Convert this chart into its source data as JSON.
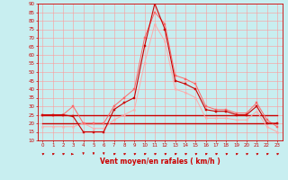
{
  "title": "",
  "xlabel": "Vent moyen/en rafales ( km/h )",
  "ylabel": "",
  "bg_color": "#c8eef0",
  "grid_color": "#ff9999",
  "xlim": [
    -0.5,
    23.5
  ],
  "ylim": [
    10,
    90
  ],
  "yticks": [
    10,
    15,
    20,
    25,
    30,
    35,
    40,
    45,
    50,
    55,
    60,
    65,
    70,
    75,
    80,
    85,
    90
  ],
  "xticks": [
    0,
    1,
    2,
    3,
    4,
    5,
    6,
    7,
    8,
    9,
    10,
    11,
    12,
    13,
    14,
    15,
    16,
    17,
    18,
    19,
    20,
    21,
    22,
    23
  ],
  "series": [
    {
      "data": [
        25,
        25,
        25,
        24,
        15,
        15,
        15,
        28,
        32,
        35,
        65,
        90,
        75,
        45,
        43,
        40,
        28,
        27,
        27,
        25,
        25,
        30,
        20,
        20
      ],
      "color": "#cc0000",
      "lw": 0.8,
      "marker": "s",
      "ms": 1.5,
      "zorder": 5
    },
    {
      "data": [
        25,
        25,
        25,
        30,
        20,
        20,
        20,
        30,
        35,
        40,
        70,
        85,
        78,
        48,
        46,
        43,
        30,
        28,
        28,
        26,
        26,
        32,
        22,
        18
      ],
      "color": "#ff6666",
      "lw": 0.7,
      "marker": "s",
      "ms": 1.5,
      "zorder": 4
    },
    {
      "data": [
        18,
        18,
        18,
        18,
        20,
        17,
        17,
        22,
        25,
        28,
        55,
        78,
        68,
        40,
        38,
        35,
        23,
        23,
        23,
        22,
        22,
        27,
        18,
        15
      ],
      "color": "#ffaaaa",
      "lw": 0.7,
      "marker": "s",
      "ms": 1.2,
      "zorder": 3
    },
    {
      "data": [
        25,
        25,
        25,
        25,
        25,
        25,
        25,
        25,
        25,
        25,
        25,
        25,
        25,
        25,
        25,
        25,
        25,
        25,
        25,
        25,
        25,
        25,
        25,
        25
      ],
      "color": "#cc0000",
      "lw": 1.0,
      "marker": null,
      "ms": 0,
      "zorder": 2
    },
    {
      "data": [
        20,
        20,
        20,
        20,
        20,
        20,
        20,
        20,
        20,
        20,
        20,
        20,
        20,
        20,
        20,
        20,
        20,
        20,
        20,
        20,
        20,
        20,
        20,
        20
      ],
      "color": "#cc0000",
      "lw": 1.0,
      "marker": null,
      "ms": 0,
      "zorder": 2
    },
    {
      "data": [
        25,
        25,
        25,
        25,
        25,
        25,
        25,
        25,
        25,
        25,
        25,
        25,
        25,
        25,
        25,
        25,
        25,
        25,
        25,
        25,
        25,
        25,
        25,
        25
      ],
      "color": "#ffaaaa",
      "lw": 0.7,
      "marker": null,
      "ms": 0,
      "zorder": 1
    },
    {
      "data": [
        20,
        20,
        20,
        20,
        20,
        20,
        20,
        20,
        20,
        20,
        20,
        20,
        20,
        20,
        20,
        20,
        20,
        20,
        20,
        20,
        20,
        20,
        20,
        20
      ],
      "color": "#ffaaaa",
      "lw": 0.7,
      "marker": null,
      "ms": 0,
      "zorder": 1
    }
  ],
  "axis_color": "#cc0000",
  "tick_color": "#cc0000",
  "label_color": "#cc0000",
  "tick_fontsize": 4,
  "xlabel_fontsize": 5.5
}
